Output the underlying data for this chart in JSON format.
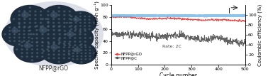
{
  "xlabel": "Cycle number",
  "ylabel_left": "Specific capacity (mAh g⁻¹)",
  "ylabel_right": "Coulombic efficiency (%)",
  "xlim": [
    0,
    500
  ],
  "ylim_left": [
    0,
    100
  ],
  "ylim_right": [
    0,
    120
  ],
  "xticks": [
    0,
    100,
    200,
    300,
    400,
    500
  ],
  "yticks_left": [
    0,
    20,
    40,
    60,
    80,
    100
  ],
  "yticks_right": [
    0,
    20,
    40,
    60,
    80,
    100
  ],
  "annotation": "Rate: 2C",
  "legend_entries": [
    "NFPP@rGO",
    "NFPP@C"
  ],
  "legend_colors": [
    "#e84040",
    "#505050"
  ],
  "coulombic_color": "#6ab0e4",
  "coulombic_level": 99.0,
  "nfpp_rgo_start": 80,
  "nfpp_rgo_end": 74,
  "nfpp_c_start": 53,
  "nfpp_c_end": 37,
  "n_cycles": 500,
  "bg_color": "#ffffff",
  "font_size": 5.5,
  "label_font_size": 5.0,
  "left_label": "NFPP@rGO",
  "left_sublabel": "NFPP@C"
}
